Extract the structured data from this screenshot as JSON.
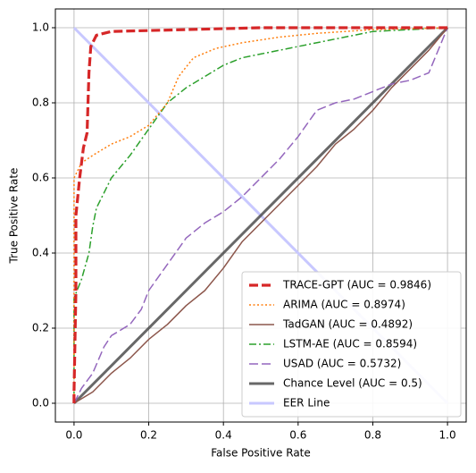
{
  "chart_data": {
    "type": "line",
    "xlabel": "False Positive Rate",
    "ylabel": "True Positive Rate",
    "xlim": [
      -0.05,
      1.05
    ],
    "ylim": [
      -0.05,
      1.05
    ],
    "xticks": [
      {
        "value": 0,
        "label": "0.0"
      },
      0.2,
      0.4,
      0.6,
      0.8,
      {
        "value": 1,
        "label": "1.0"
      }
    ],
    "yticks": [
      {
        "value": 0,
        "label": "0.0"
      },
      0.2,
      0.4,
      0.6,
      0.8,
      {
        "value": 1,
        "label": "1.0"
      }
    ],
    "grid": true,
    "legend": "lower right",
    "series": [
      {
        "name": "TRACE-GPT (AUC = 0.9846)",
        "color": "#d62728",
        "linestyle": "dashed",
        "x": [
          0,
          0,
          0.005,
          0.005,
          0.01,
          0.015,
          0.025,
          0.035,
          0.04,
          0.045,
          0.06,
          0.1,
          0.3,
          0.5,
          1
        ],
        "values": [
          0,
          0.03,
          0.3,
          0.5,
          0.55,
          0.6,
          0.68,
          0.72,
          0.88,
          0.95,
          0.98,
          0.99,
          0.995,
          1,
          1
        ]
      },
      {
        "name": "ARIMA (AUC = 0.8974)",
        "color": "#ff7f0e",
        "linestyle": "dotted",
        "x": [
          0,
          0,
          0.02,
          0.05,
          0.1,
          0.15,
          0.2,
          0.25,
          0.28,
          0.32,
          0.38,
          0.45,
          0.55,
          0.65,
          0.8,
          1
        ],
        "values": [
          0,
          0.6,
          0.64,
          0.66,
          0.69,
          0.71,
          0.74,
          0.8,
          0.87,
          0.92,
          0.945,
          0.96,
          0.975,
          0.985,
          0.995,
          1
        ]
      },
      {
        "name": "TadGAN (AUC = 0.4892)",
        "color": "#8c564b",
        "linestyle": "solid",
        "x": [
          0,
          0.05,
          0.1,
          0.15,
          0.2,
          0.25,
          0.3,
          0.35,
          0.4,
          0.45,
          0.5,
          0.55,
          0.6,
          0.65,
          0.7,
          0.75,
          0.8,
          0.85,
          0.9,
          0.95,
          1
        ],
        "values": [
          0,
          0.03,
          0.08,
          0.12,
          0.17,
          0.21,
          0.26,
          0.3,
          0.36,
          0.43,
          0.48,
          0.53,
          0.58,
          0.63,
          0.69,
          0.73,
          0.78,
          0.84,
          0.89,
          0.94,
          1
        ]
      },
      {
        "name": "LSTM-AE (AUC = 0.8594)",
        "color": "#2ca02c",
        "linestyle": "dashdot",
        "x": [
          0,
          0,
          0.02,
          0.04,
          0.05,
          0.06,
          0.08,
          0.1,
          0.15,
          0.2,
          0.25,
          0.3,
          0.35,
          0.4,
          0.45,
          0.5,
          0.6,
          0.7,
          0.8,
          0.9,
          1
        ],
        "values": [
          0,
          0.28,
          0.33,
          0.4,
          0.47,
          0.52,
          0.56,
          0.6,
          0.66,
          0.73,
          0.8,
          0.84,
          0.87,
          0.9,
          0.92,
          0.93,
          0.95,
          0.97,
          0.99,
          0.995,
          1
        ]
      },
      {
        "name": "USAD (AUC = 0.5732)",
        "color": "#9467bd",
        "linestyle": "dashed",
        "x": [
          0,
          0.02,
          0.05,
          0.08,
          0.1,
          0.15,
          0.18,
          0.2,
          0.25,
          0.3,
          0.35,
          0.4,
          0.45,
          0.5,
          0.55,
          0.6,
          0.65,
          0.7,
          0.75,
          0.8,
          0.85,
          0.9,
          0.95,
          1
        ],
        "values": [
          0,
          0.04,
          0.08,
          0.15,
          0.18,
          0.21,
          0.25,
          0.3,
          0.37,
          0.44,
          0.48,
          0.51,
          0.55,
          0.6,
          0.65,
          0.71,
          0.78,
          0.8,
          0.81,
          0.83,
          0.85,
          0.86,
          0.88,
          1
        ]
      },
      {
        "name": "Chance Level (AUC = 0.5)",
        "color": "#4d4d4d",
        "linestyle": "solid",
        "x": [
          0,
          1
        ],
        "values": [
          0,
          1
        ]
      },
      {
        "name": "EER Line",
        "color": "#c8c8ff",
        "linestyle": "solid",
        "x": [
          0,
          1
        ],
        "values": [
          1,
          0
        ]
      }
    ]
  }
}
